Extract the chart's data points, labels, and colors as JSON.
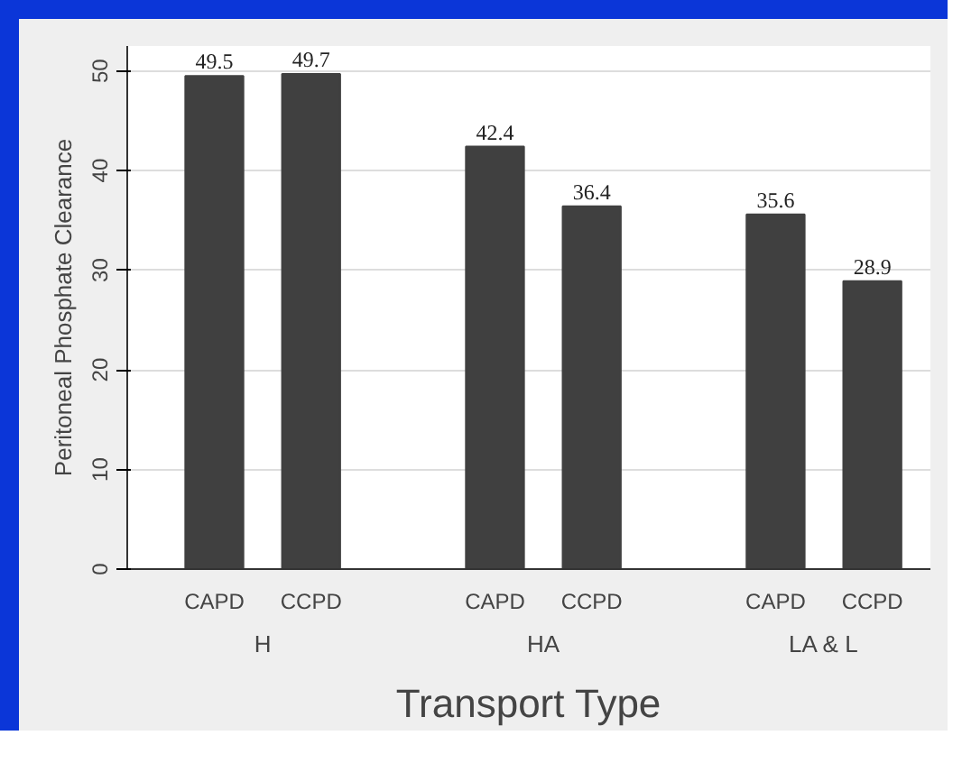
{
  "chart_data": {
    "type": "bar",
    "ylabel": "Peritoneal Phosphate Clearance",
    "xlabel": "Transport Type",
    "categories": [
      "CAPD",
      "CCPD",
      "CAPD",
      "CCPD",
      "CAPD",
      "CCPD"
    ],
    "values": [
      49.5,
      49.7,
      42.4,
      36.4,
      35.6,
      28.9
    ],
    "color": "#404040",
    "ylim": [
      0,
      52.5
    ],
    "yticks": [
      0,
      10,
      20,
      30,
      40,
      50
    ],
    "grid": "y",
    "data_labels": true,
    "annotations": [
      "H",
      "HA",
      "LA & L"
    ]
  }
}
